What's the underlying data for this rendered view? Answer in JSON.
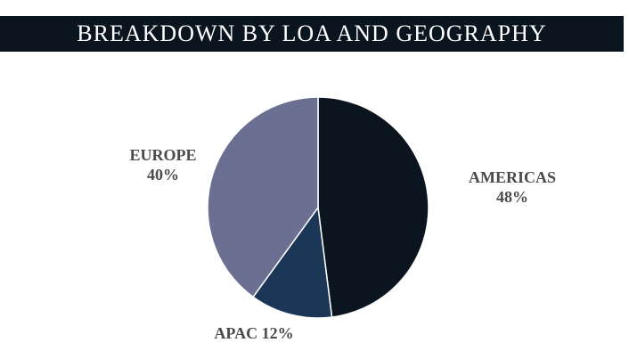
{
  "header": {
    "title": "BREAKDOWN BY LOA AND GEOGRAPHY"
  },
  "chart_data": {
    "type": "pie",
    "title": "BREAKDOWN BY LOA AND GEOGRAPHY",
    "slices": [
      {
        "label": "AMERICAS",
        "value": 48,
        "value_text": "48%",
        "color": "#0b1520"
      },
      {
        "label": "APAC",
        "value": 12,
        "value_text": "12%",
        "color": "#1c3658"
      },
      {
        "label": "EUROPE",
        "value": 40,
        "value_text": "40%",
        "color": "#6b7093"
      }
    ],
    "start_angle": "12 o'clock",
    "direction": "clockwise",
    "slice_border_color": "#ffffff",
    "legend": "none"
  }
}
